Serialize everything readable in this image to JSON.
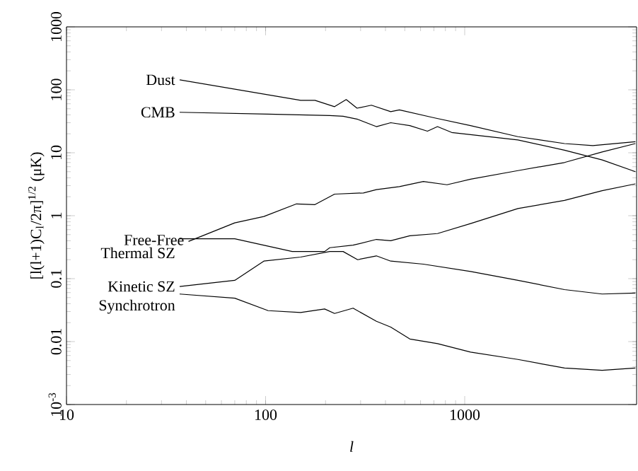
{
  "chart_data": {
    "type": "line",
    "xlabel": "l",
    "ylabel": "[l(l+1)C$_{l}$/2π]$^{1/2}$ (μK)",
    "log": "xy",
    "grid": false,
    "legend": false,
    "line_style": "solid",
    "xlim": [
      10,
      7300
    ],
    "ylim": [
      0.001,
      1000
    ],
    "xticks": [
      10,
      100,
      1000
    ],
    "yticks": [
      {
        "value": 0.001,
        "label": "10$^{-3}$"
      },
      0.01,
      0.1,
      1,
      10,
      100,
      1000
    ],
    "series": [
      {
        "name": "Dust",
        "color": "#000000",
        "x": [
          37,
          150,
          177,
          222,
          254,
          288,
          340,
          425,
          470,
          700,
          1070,
          1850,
          3170,
          4400,
          7200
        ],
        "values": [
          144,
          68,
          68,
          54,
          70,
          51,
          57,
          45,
          48,
          36,
          27,
          18,
          14,
          13,
          15
        ]
      },
      {
        "name": "CMB",
        "color": "#000000",
        "x": [
          37,
          103,
          210,
          245,
          290,
          360,
          425,
          530,
          650,
          730,
          860,
          1850,
          3170,
          4900,
          7200
        ],
        "values": [
          44,
          41,
          39,
          38,
          34,
          26,
          30,
          27,
          22,
          26,
          21,
          16,
          11,
          7.7,
          5
        ]
      },
      {
        "name": "Free-Free",
        "color": "#000000",
        "x": [
          41,
          70,
          98,
          143,
          177,
          222,
          310,
          360,
          470,
          620,
          815,
          1070,
          1850,
          3170,
          4900,
          7200
        ],
        "values": [
          0.39,
          0.77,
          0.97,
          1.54,
          1.5,
          2.2,
          2.3,
          2.6,
          2.9,
          3.5,
          3.1,
          3.8,
          5.2,
          7,
          10.3,
          14
        ]
      },
      {
        "name": "Thermal SZ",
        "color": "#000000",
        "x": [
          37,
          70,
          136,
          198,
          210,
          275,
          360,
          425,
          530,
          730,
          1070,
          1850,
          3170,
          4900,
          7200
        ],
        "values": [
          0.43,
          0.43,
          0.27,
          0.27,
          0.31,
          0.34,
          0.42,
          0.4,
          0.48,
          0.52,
          0.75,
          1.3,
          1.75,
          2.5,
          3.2
        ]
      },
      {
        "name": "Kinetic SZ",
        "color": "#000000",
        "x": [
          37,
          70,
          98,
          150,
          210,
          245,
          290,
          360,
          425,
          620,
          1070,
          1850,
          3170,
          4900,
          7200
        ],
        "values": [
          0.075,
          0.094,
          0.19,
          0.22,
          0.27,
          0.27,
          0.2,
          0.23,
          0.19,
          0.17,
          0.13,
          0.094,
          0.067,
          0.057,
          0.059
        ]
      },
      {
        "name": "Synchrotron",
        "color": "#000000",
        "x": [
          37,
          70,
          103,
          150,
          198,
          222,
          275,
          360,
          425,
          530,
          730,
          1070,
          1850,
          3170,
          4900,
          7200
        ],
        "values": [
          0.057,
          0.049,
          0.031,
          0.029,
          0.033,
          0.028,
          0.034,
          0.021,
          0.017,
          0.011,
          0.0093,
          0.0068,
          0.0052,
          0.0038,
          0.0035,
          0.0038
        ]
      }
    ]
  }
}
